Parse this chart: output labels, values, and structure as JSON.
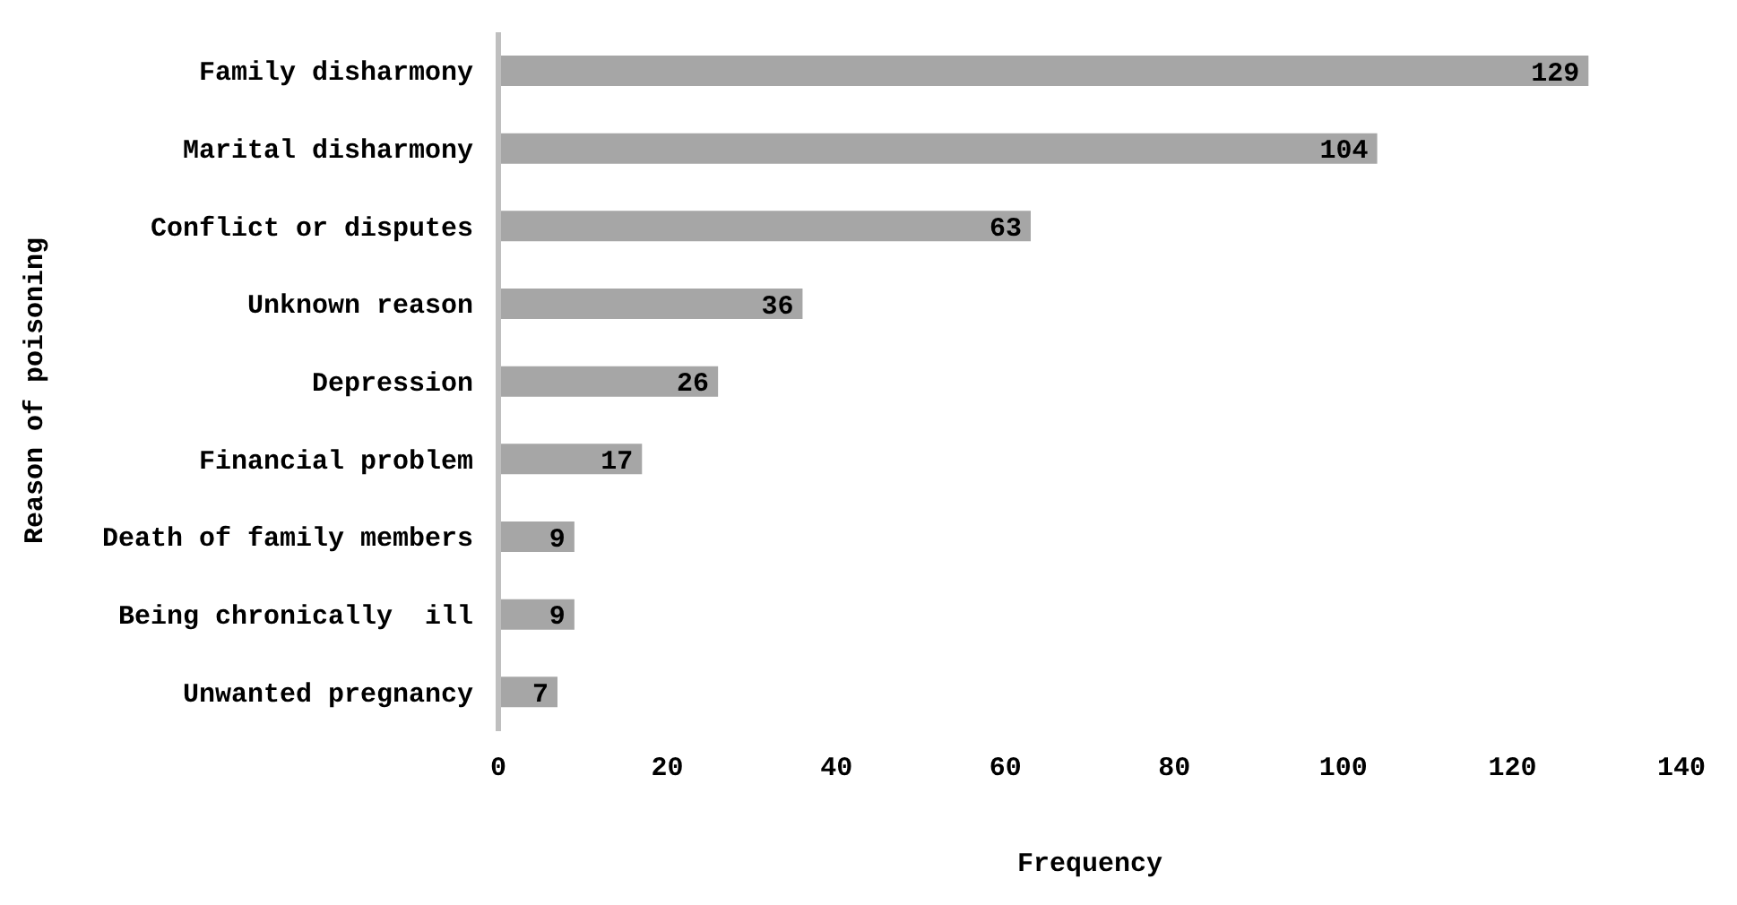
{
  "chart_data": {
    "type": "bar",
    "orientation": "horizontal",
    "xlabel": "Frequency",
    "ylabel": "Reason of poisoning",
    "categories": [
      "Family disharmony",
      "Marital disharmony",
      "Conflict or disputes",
      "Unknown reason",
      "Depression",
      "Financial problem",
      "Death of family members",
      "Being chronically  ill",
      "Unwanted pregnancy"
    ],
    "values": [
      129,
      104,
      63,
      36,
      26,
      17,
      9,
      9,
      7
    ],
    "color": "#a6a6a6",
    "xlim": [
      0,
      140
    ],
    "xticks": [
      0,
      20,
      40,
      60,
      80,
      100,
      120,
      140
    ],
    "data_labels": true,
    "grid": false,
    "legend": false
  }
}
